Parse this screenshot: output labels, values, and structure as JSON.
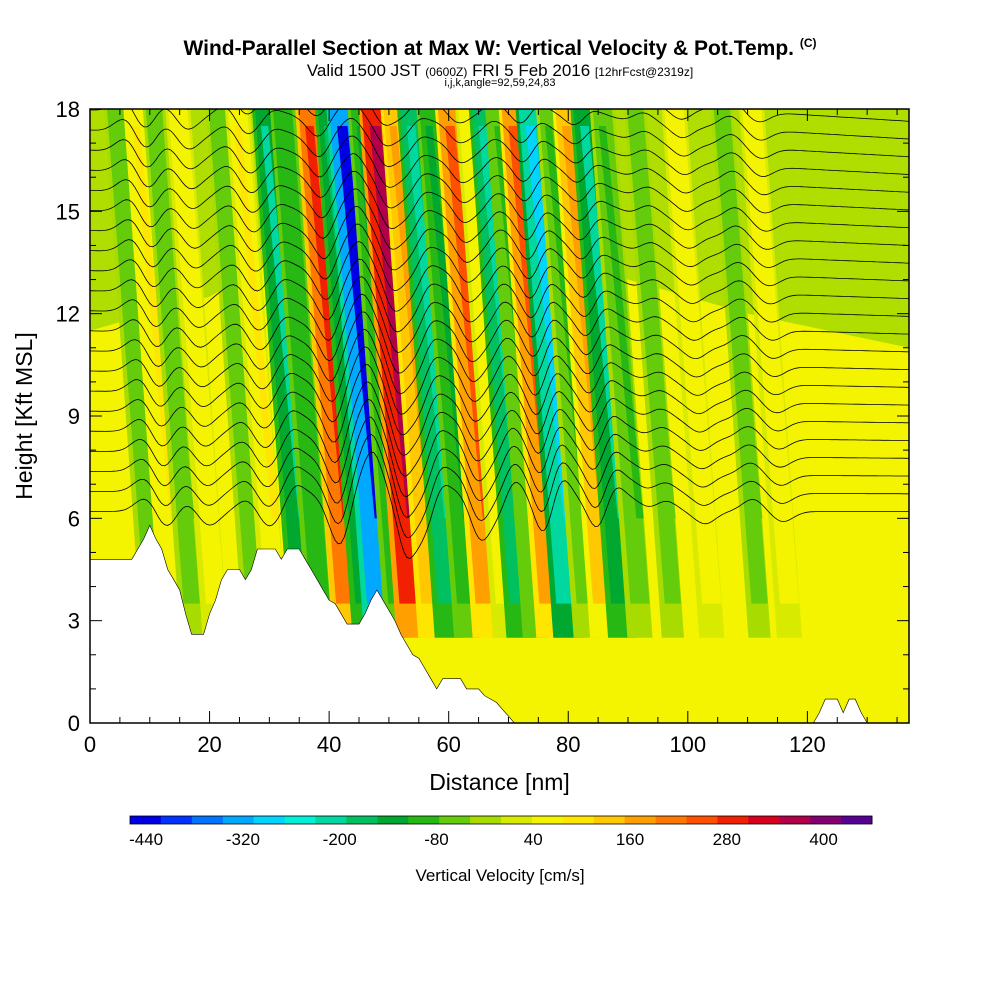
{
  "header": {
    "title": "Wind-Parallel Section at Max W: Vertical Velocity & Pot.Temp.",
    "copyright": "(C)",
    "valid_prefix": "Valid 1500 JST",
    "valid_zulu": "(0600Z)",
    "valid_date": "FRI 5 Feb 2016",
    "forecast": "[12hrFcst@2319z]",
    "indices": "i,j,k,angle=92,59,24,83"
  },
  "chart_data": {
    "type": "heatmap",
    "title": "Wind-Parallel Section at Max W: Vertical Velocity & Pot.Temp.",
    "xlabel": "Distance [nm]",
    "ylabel": "Height [Kft MSL]",
    "xlim": [
      0,
      137
    ],
    "ylim": [
      0,
      18
    ],
    "x_ticks": [
      "0",
      "20",
      "40",
      "60",
      "80",
      "100",
      "120"
    ],
    "y_ticks": [
      "0",
      "3",
      "6",
      "9",
      "12",
      "15",
      "18"
    ],
    "colorbar": {
      "label": "Vertical Velocity [cm/s]",
      "ticks": [
        "-440",
        "-320",
        "-200",
        "-80",
        "40",
        "160",
        "280",
        "400"
      ],
      "range": [
        -460,
        460
      ],
      "colors": [
        "#0000e6",
        "#0033ff",
        "#0073ff",
        "#00a8ff",
        "#00d4ff",
        "#00f0d8",
        "#00d8a0",
        "#00c060",
        "#00a830",
        "#28b814",
        "#64cc0a",
        "#a8dc00",
        "#d8ea00",
        "#f4f400",
        "#ffe600",
        "#ffc800",
        "#ffa000",
        "#ff7800",
        "#ff5000",
        "#f02000",
        "#d8001e",
        "#b0004a",
        "#840070",
        "#560094"
      ]
    },
    "velocity_bands": [
      {
        "x": 35.5,
        "w": -200,
        "width": 1.5
      },
      {
        "x": 38.5,
        "w": -110,
        "width": 1.5
      },
      {
        "x": 43.0,
        "w": 300,
        "width": 1.8
      },
      {
        "x": 46.0,
        "w": -180,
        "width": 1.5
      },
      {
        "x": 48.5,
        "w": -430,
        "width": 2.2
      },
      {
        "x": 51.5,
        "w": -120,
        "width": 1.5
      },
      {
        "x": 54.0,
        "w": 380,
        "width": 2.3
      },
      {
        "x": 57.0,
        "w": 190,
        "width": 1.5
      },
      {
        "x": 60.0,
        "w": -210,
        "width": 1.8
      },
      {
        "x": 63.0,
        "w": -120,
        "width": 1.5
      },
      {
        "x": 66.5,
        "w": 240,
        "width": 2.0
      },
      {
        "x": 69.5,
        "w": 60,
        "width": 1.5
      },
      {
        "x": 72.0,
        "w": -230,
        "width": 1.8
      },
      {
        "x": 74.5,
        "w": -90,
        "width": 1.5
      },
      {
        "x": 77.0,
        "w": 230,
        "width": 1.8
      },
      {
        "x": 80.0,
        "w": -270,
        "width": 2.0
      },
      {
        "x": 83.0,
        "w": -80,
        "width": 1.5
      },
      {
        "x": 86.0,
        "w": 170,
        "width": 1.8
      },
      {
        "x": 89.0,
        "w": -200,
        "width": 1.8
      },
      {
        "x": 92.0,
        "w": -80,
        "width": 1.5
      }
    ],
    "weak_bands": [
      {
        "x": 10.5,
        "w": -70,
        "width": 1.2
      },
      {
        "x": 14.0,
        "w": 90,
        "width": 1.5
      },
      {
        "x": 17.0,
        "w": -50,
        "width": 1.2
      },
      {
        "x": 21.0,
        "w": 70,
        "width": 1.5
      },
      {
        "x": 27.5,
        "w": -60,
        "width": 1.2
      },
      {
        "x": 31.0,
        "w": 80,
        "width": 1.5
      },
      {
        "x": 97.5,
        "w": -50,
        "width": 1.2
      },
      {
        "x": 104.0,
        "w": 60,
        "width": 1.5
      },
      {
        "x": 112.0,
        "w": -60,
        "width": 1.2
      },
      {
        "x": 117.0,
        "w": 50,
        "width": 1.5
      }
    ],
    "terrain_kft": [
      [
        0,
        4.8
      ],
      [
        7,
        4.8
      ],
      [
        8,
        5.1
      ],
      [
        9,
        5.4
      ],
      [
        10,
        5.8
      ],
      [
        11,
        5.4
      ],
      [
        12,
        5.1
      ],
      [
        13,
        4.5
      ],
      [
        14,
        4.2
      ],
      [
        15,
        3.9
      ],
      [
        16,
        3.2
      ],
      [
        17,
        2.6
      ],
      [
        19,
        2.6
      ],
      [
        20,
        3.2
      ],
      [
        21,
        3.6
      ],
      [
        22,
        4.2
      ],
      [
        23,
        4.5
      ],
      [
        25,
        4.5
      ],
      [
        26,
        4.2
      ],
      [
        27,
        4.5
      ],
      [
        28,
        5.1
      ],
      [
        31,
        5.1
      ],
      [
        32,
        4.8
      ],
      [
        33,
        5.1
      ],
      [
        35,
        5.1
      ],
      [
        36,
        4.8
      ],
      [
        37,
        4.5
      ],
      [
        38,
        4.2
      ],
      [
        39,
        3.9
      ],
      [
        40,
        3.6
      ],
      [
        41,
        3.5
      ],
      [
        42,
        3.2
      ],
      [
        43,
        2.9
      ],
      [
        45,
        2.9
      ],
      [
        46,
        3.2
      ],
      [
        47,
        3.6
      ],
      [
        48,
        3.9
      ],
      [
        49,
        3.6
      ],
      [
        50,
        3.3
      ],
      [
        51,
        3.0
      ],
      [
        52,
        2.6
      ],
      [
        53,
        2.3
      ],
      [
        54,
        2.0
      ],
      [
        55,
        1.9
      ],
      [
        56,
        1.6
      ],
      [
        57,
        1.3
      ],
      [
        58,
        1.0
      ],
      [
        59,
        1.3
      ],
      [
        62,
        1.3
      ],
      [
        63,
        1.0
      ],
      [
        65,
        1.0
      ],
      [
        66,
        0.8
      ],
      [
        68,
        0.6
      ],
      [
        69,
        0.4
      ],
      [
        70,
        0.2
      ],
      [
        71,
        0.0
      ],
      [
        121,
        0.0
      ],
      [
        122,
        0.3
      ],
      [
        123,
        0.7
      ],
      [
        125,
        0.7
      ],
      [
        126,
        0.3
      ],
      [
        127,
        0.7
      ],
      [
        128,
        0.7
      ],
      [
        129,
        0.3
      ],
      [
        130,
        0.0
      ],
      [
        137,
        0.0
      ]
    ]
  }
}
